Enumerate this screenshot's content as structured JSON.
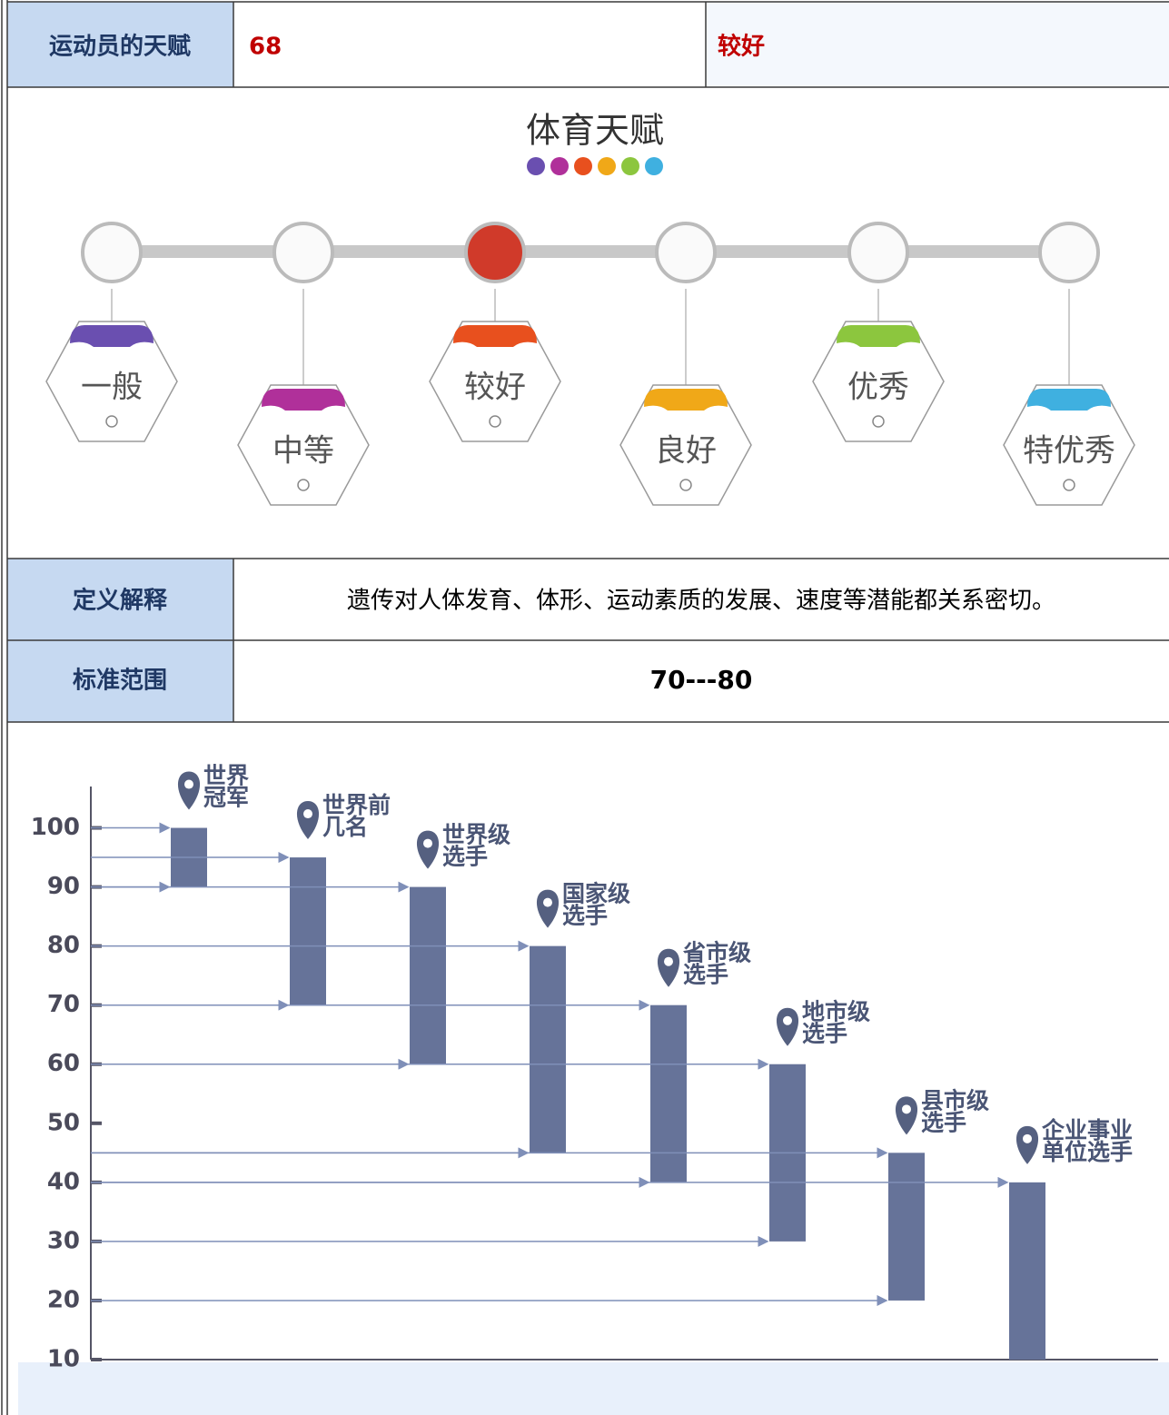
{
  "header": {
    "label": "运动员的天赋",
    "score": "68",
    "level": "较好"
  },
  "infographic": {
    "title": "体育天赋",
    "levels": [
      "一般",
      "中等",
      "较好",
      "良好",
      "优秀",
      "特优秀"
    ],
    "colors": [
      "#6a4fb0",
      "#b0309a",
      "#e8501e",
      "#f0a818",
      "#8cc63e",
      "#3fb0e0"
    ],
    "active_color": "#d03a2a"
  },
  "definition": {
    "label": "定义解释",
    "text": "遗传对人体发育、体形、运动素质的发展、速度等潜能都关系密切。"
  },
  "range": {
    "label": "标准范围",
    "text": "70---80"
  },
  "chart_data": {
    "type": "floating-bar",
    "categories": [
      [
        "世界",
        "冠军"
      ],
      [
        "世界前",
        "几名"
      ],
      [
        "世界级",
        "选手"
      ],
      [
        "国家级",
        "选手"
      ],
      [
        "省市级",
        "选手"
      ],
      [
        "地市级",
        "选手"
      ],
      [
        "县市级",
        "选手"
      ],
      [
        "企业事业",
        "单位选手"
      ]
    ],
    "low": [
      90,
      70,
      60,
      45,
      40,
      30,
      20,
      10
    ],
    "high": [
      100,
      95,
      90,
      80,
      70,
      60,
      45,
      40
    ],
    "color": "#667399",
    "ylim": [
      10,
      107
    ],
    "yticks": [
      10,
      20,
      30,
      40,
      50,
      60,
      70,
      80,
      90,
      100
    ]
  }
}
